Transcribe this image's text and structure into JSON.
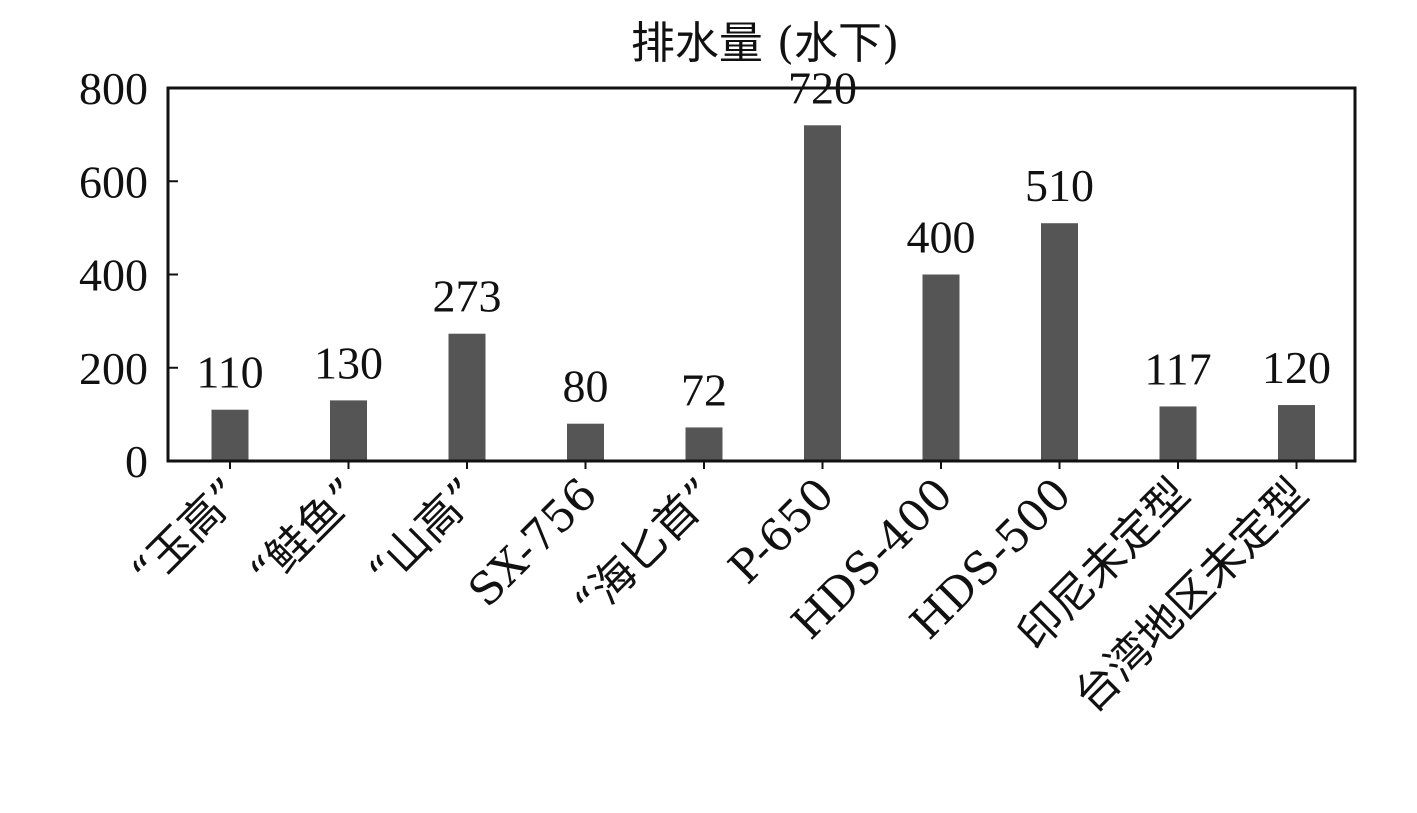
{
  "chart_data": {
    "type": "bar",
    "title": "排水量 (水下)",
    "xlabel": "",
    "ylabel": "",
    "categories": [
      "“玉高”",
      "“鲑鱼”",
      "“山高”",
      "SX-756",
      "“海匕首”",
      "P-650",
      "HDS-400",
      "HDS-500",
      "印尼未定型",
      "台湾地区未定型"
    ],
    "values": [
      110,
      130,
      273,
      80,
      72,
      720,
      400,
      510,
      117,
      120
    ],
    "data_labels": [
      "110",
      "130",
      "273",
      "80",
      "72",
      "720",
      "400",
      "510",
      "117",
      "120"
    ],
    "ylim": [
      0,
      800
    ],
    "yticks": [
      0,
      200,
      400,
      600,
      800
    ],
    "grid": false,
    "legend": "none",
    "bar_color": "#555555",
    "axis_color": "#111111"
  }
}
